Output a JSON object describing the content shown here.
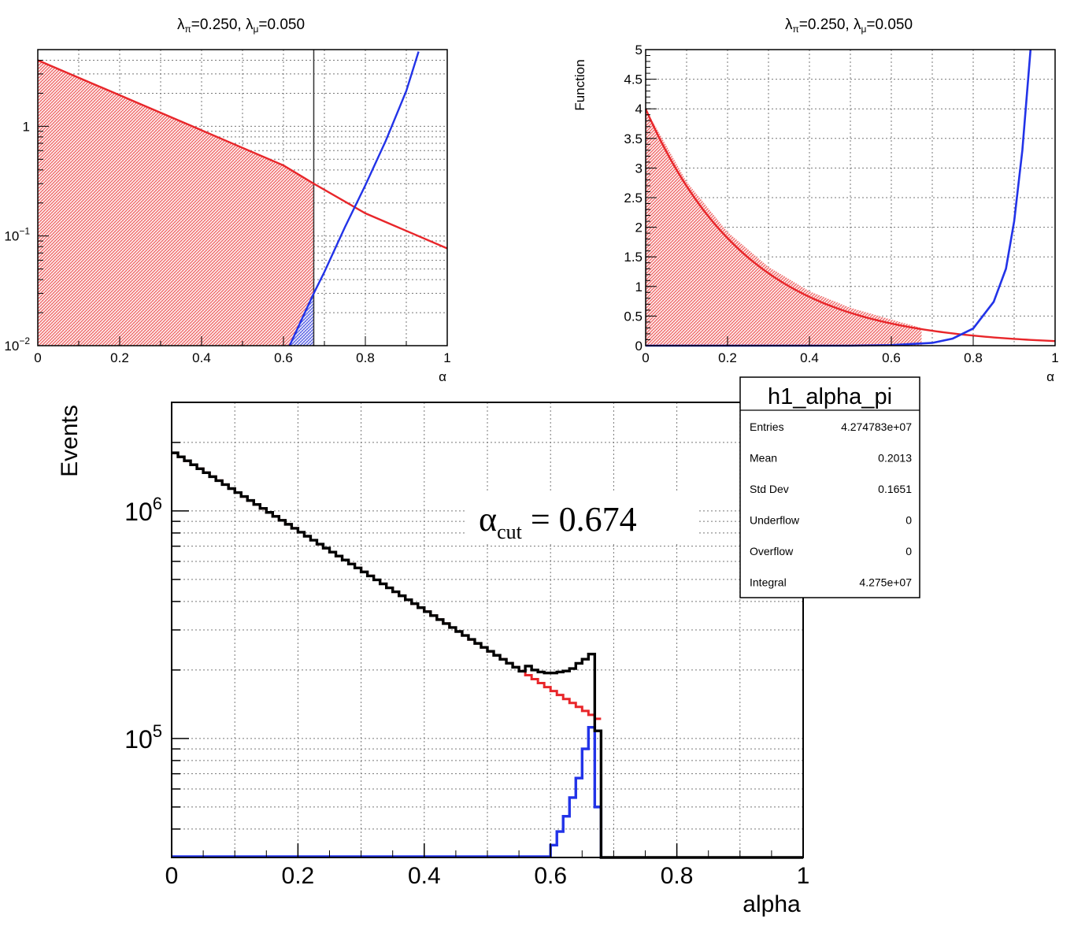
{
  "colors": {
    "pion": "#e8262a",
    "muon": "#2233e8",
    "total": "#000000",
    "hatch_red": "#f08080",
    "hatch_blue": "#6666ee"
  },
  "chart_data": [
    {
      "type": "line",
      "title_parts": {
        "lpi": "λ",
        "pi_sub": "π",
        "lpi_val": "=0.250, ",
        "lmu": "λ",
        "mu_sub": "μ",
        "lmu_val": "=0.050"
      },
      "xlabel": "α",
      "ylabel": "",
      "xlim": [
        0,
        1
      ],
      "ylim": [
        0.01,
        5
      ],
      "log_y": true,
      "grid": true,
      "xticks": [
        "0",
        "0.2",
        "0.4",
        "0.6",
        "0.8",
        "1"
      ],
      "yticks": [
        {
          "value": 0.1,
          "base": "10",
          "exp": "−1"
        },
        {
          "value": 1,
          "base": "1",
          "exp": ""
        },
        {
          "value": 0.01,
          "base": "10",
          "exp": "−2"
        }
      ],
      "cut": 0.674,
      "series": [
        {
          "role": "pion",
          "x": [
            0,
            0.2,
            0.4,
            0.6,
            0.674,
            0.8,
            1.0
          ],
          "y": [
            4.0,
            1.92,
            0.92,
            0.44,
            0.3,
            0.161,
            0.077
          ]
        },
        {
          "role": "muon",
          "x": [
            0.615,
            0.674,
            0.7,
            0.75,
            0.8,
            0.85,
            0.9,
            0.93
          ],
          "y": [
            0.0098,
            0.03,
            0.047,
            0.12,
            0.29,
            0.74,
            2.1,
            4.8
          ]
        }
      ]
    },
    {
      "type": "line",
      "title_parts": {
        "lpi": "λ",
        "pi_sub": "π",
        "lpi_val": "=0.250, ",
        "lmu": "λ",
        "mu_sub": "μ",
        "lmu_val": "=0.050"
      },
      "xlabel": "α",
      "ylabel": "Function",
      "xlim": [
        0,
        1
      ],
      "ylim": [
        0,
        5
      ],
      "log_y": false,
      "grid": true,
      "xticks": [
        "0",
        "0.2",
        "0.4",
        "0.6",
        "0.8",
        "1"
      ],
      "yticks": [
        "0",
        "0.5",
        "1",
        "1.5",
        "2",
        "2.5",
        "3",
        "3.5",
        "4",
        "4.5",
        "5"
      ],
      "cut": 0.674,
      "series": [
        {
          "role": "pion",
          "x": [
            0,
            0.1,
            0.2,
            0.3,
            0.4,
            0.5,
            0.6,
            0.674,
            0.8,
            0.9,
            1.0
          ],
          "y": [
            4.0,
            2.77,
            1.92,
            1.33,
            0.92,
            0.64,
            0.44,
            0.3,
            0.161,
            0.112,
            0.077
          ]
        },
        {
          "role": "muon",
          "x": [
            0,
            0.5,
            0.6,
            0.7,
            0.75,
            0.8,
            0.85,
            0.88,
            0.9,
            0.92,
            0.94
          ],
          "y": [
            0,
            0,
            0.01,
            0.047,
            0.12,
            0.29,
            0.74,
            1.3,
            2.1,
            3.3,
            5.0
          ]
        }
      ]
    },
    {
      "type": "histogram",
      "title": "",
      "xlabel": "alpha",
      "ylabel": "Events",
      "xlim": [
        0,
        1
      ],
      "ylim": [
        30000,
        3000000
      ],
      "log_y": true,
      "grid": true,
      "xticks": [
        "0",
        "0.2",
        "0.4",
        "0.6",
        "0.8",
        "1"
      ],
      "yticks": [
        {
          "value": 1000000,
          "base": "10",
          "exp": "6"
        },
        {
          "value": 100000,
          "base": "10",
          "exp": "5"
        }
      ],
      "bins": 100,
      "annotation": {
        "alpha": "α",
        "sub": "cut",
        "rest": " = 0.674"
      },
      "cut": 0.674,
      "pion_bins": {
        "start": 0,
        "end": 0.67,
        "y_start": 1800000,
        "y_end": 122000
      },
      "muon_bins": {
        "x": [
          0.6,
          0.61,
          0.62,
          0.63,
          0.64,
          0.65,
          0.66,
          0.67
        ],
        "y": [
          34000,
          39000,
          45500,
          55000,
          67000,
          90000,
          112000,
          50000
        ]
      },
      "total_bins_tail": {
        "x": [
          0.56,
          0.57,
          0.58,
          0.59,
          0.6,
          0.61,
          0.62,
          0.63,
          0.64,
          0.65,
          0.66,
          0.67
        ],
        "y": [
          208000,
          200000,
          196000,
          194000,
          194000,
          196000,
          198000,
          203000,
          214000,
          223000,
          235000,
          108000
        ]
      },
      "stats": {
        "name": "h1_alpha_pi",
        "rows": [
          {
            "label": "Entries",
            "value": "4.274783e+07"
          },
          {
            "label": "Mean",
            "value": "0.2013"
          },
          {
            "label": "Std Dev",
            "value": "0.1651"
          },
          {
            "label": "Underflow",
            "value": "0"
          },
          {
            "label": "Overflow",
            "value": "0"
          },
          {
            "label": "Integral",
            "value": "4.275e+07"
          }
        ]
      }
    }
  ]
}
